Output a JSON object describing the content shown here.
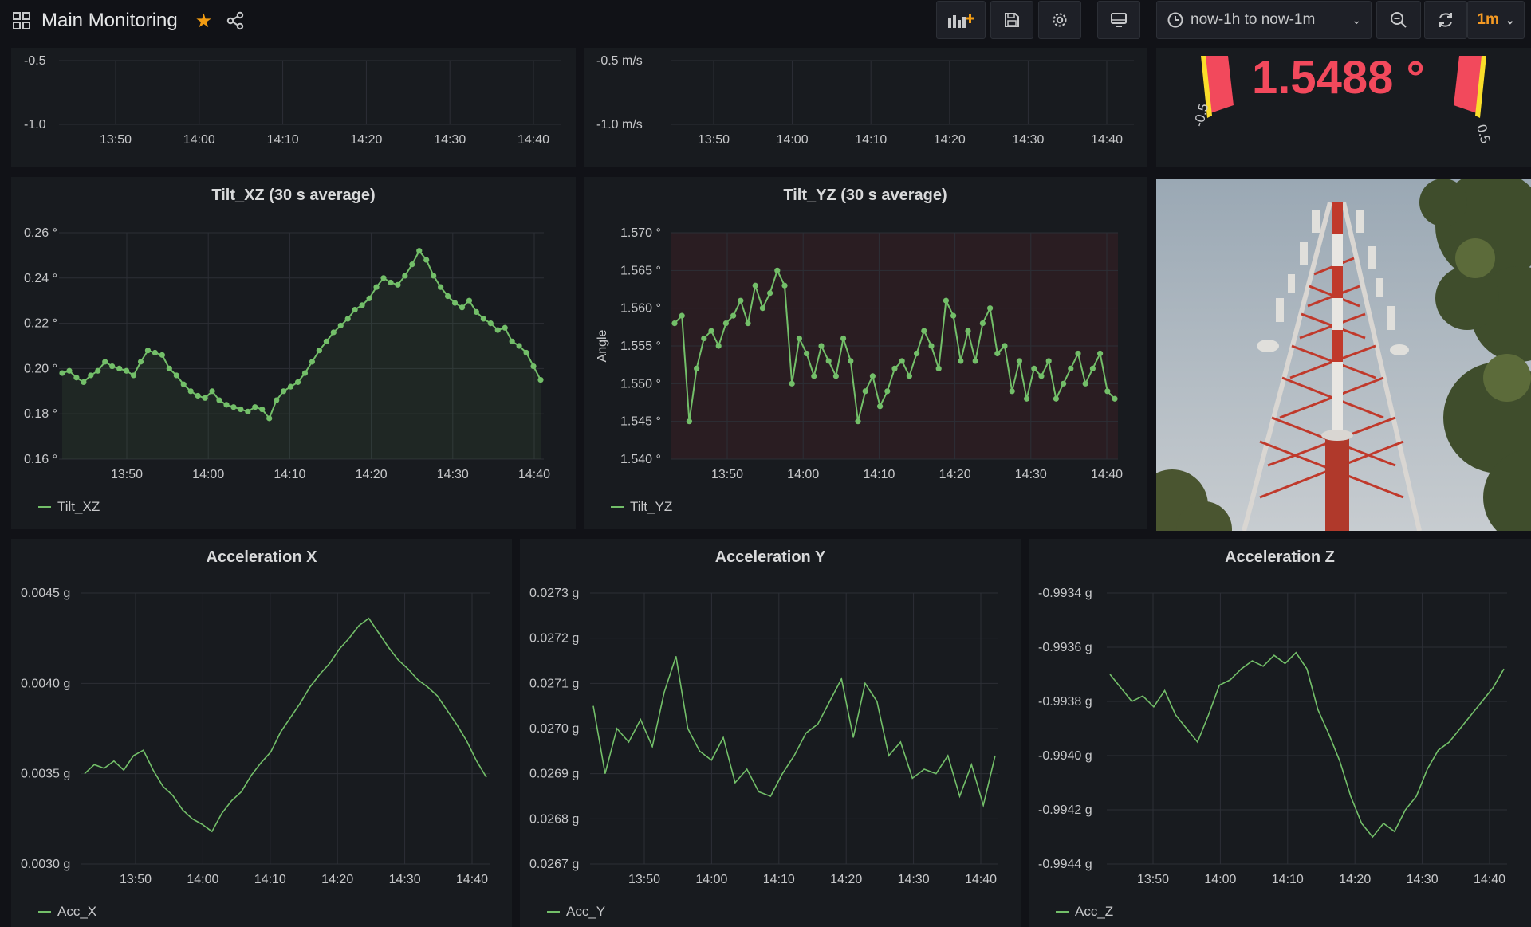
{
  "header": {
    "title": "Main Monitoring",
    "icons": [
      "dashboard-grid-icon",
      "star-icon",
      "share-icon",
      "add-panel-icon",
      "save-icon",
      "settings-icon",
      "tv-mode-icon",
      "clock-icon",
      "zoom-out-icon",
      "refresh-icon"
    ],
    "time_range": "now-1h to now-1m",
    "refresh_interval": "1m",
    "star_color": "#f39c12"
  },
  "top_left_panel": {
    "y_ticks": [
      "-0.5",
      "-1.0"
    ],
    "x_ticks": [
      "13:50",
      "14:00",
      "14:10",
      "14:20",
      "14:30",
      "14:40"
    ]
  },
  "top_mid_panel": {
    "y_ticks": [
      "-0.5 m/s",
      "-1.0 m/s"
    ],
    "x_ticks": [
      "13:50",
      "14:00",
      "14:10",
      "14:20",
      "14:30",
      "14:40"
    ]
  },
  "gauge": {
    "value": "1.5488 °",
    "min_label": "-0.5",
    "max_label": "0.5",
    "value_color": "#f2495c",
    "threshold_color": "#fade2a"
  },
  "tilt_xz": {
    "title": "Tilt_XZ (30 s average)",
    "legend": "Tilt_XZ",
    "series_color": "#73bf69",
    "y_ticks": [
      "0.26 °",
      "0.24 °",
      "0.22 °",
      "0.20 °",
      "0.18 °",
      "0.16 °"
    ],
    "x_ticks": [
      "13:50",
      "14:00",
      "14:10",
      "14:20",
      "14:30",
      "14:40"
    ],
    "chart_data": {
      "type": "line",
      "ylim": [
        0.16,
        0.26
      ],
      "values": [
        0.198,
        0.199,
        0.196,
        0.194,
        0.197,
        0.199,
        0.203,
        0.201,
        0.2,
        0.199,
        0.197,
        0.203,
        0.208,
        0.207,
        0.206,
        0.2,
        0.197,
        0.193,
        0.19,
        0.188,
        0.187,
        0.19,
        0.186,
        0.184,
        0.183,
        0.182,
        0.181,
        0.183,
        0.182,
        0.178,
        0.186,
        0.19,
        0.192,
        0.194,
        0.198,
        0.203,
        0.208,
        0.212,
        0.216,
        0.219,
        0.222,
        0.226,
        0.228,
        0.231,
        0.236,
        0.24,
        0.238,
        0.237,
        0.241,
        0.246,
        0.252,
        0.248,
        0.241,
        0.236,
        0.232,
        0.229,
        0.227,
        0.23,
        0.225,
        0.222,
        0.22,
        0.217,
        0.218,
        0.212,
        0.21,
        0.207,
        0.201,
        0.195
      ]
    }
  },
  "tilt_yz": {
    "title": "Tilt_YZ (30 s average)",
    "ylabel": "Angle",
    "legend": "Tilt_YZ",
    "series_color": "#73bf69",
    "y_ticks": [
      "1.570 °",
      "1.565 °",
      "1.560 °",
      "1.555 °",
      "1.550 °",
      "1.545 °",
      "1.540 °"
    ],
    "x_ticks": [
      "13:50",
      "14:00",
      "14:10",
      "14:20",
      "14:30",
      "14:40"
    ],
    "chart_data": {
      "type": "line",
      "ylim": [
        1.54,
        1.57
      ],
      "values": [
        1.558,
        1.559,
        1.545,
        1.552,
        1.556,
        1.557,
        1.555,
        1.558,
        1.559,
        1.561,
        1.558,
        1.563,
        1.56,
        1.562,
        1.565,
        1.563,
        1.55,
        1.556,
        1.554,
        1.551,
        1.555,
        1.553,
        1.551,
        1.556,
        1.553,
        1.545,
        1.549,
        1.551,
        1.547,
        1.549,
        1.552,
        1.553,
        1.551,
        1.554,
        1.557,
        1.555,
        1.552,
        1.561,
        1.559,
        1.553,
        1.557,
        1.553,
        1.558,
        1.56,
        1.554,
        1.555,
        1.549,
        1.553,
        1.548,
        1.552,
        1.551,
        1.553,
        1.548,
        1.55,
        1.552,
        1.554,
        1.55,
        1.552,
        1.554,
        1.549,
        1.548
      ]
    }
  },
  "acc_x": {
    "title": "Acceleration X",
    "legend": "Acc_X",
    "series_color": "#73bf69",
    "y_ticks": [
      "0.0045 g",
      "0.0040 g",
      "0.0035 g",
      "0.0030 g"
    ],
    "x_ticks": [
      "13:50",
      "14:00",
      "14:10",
      "14:20",
      "14:30",
      "14:40"
    ],
    "chart_data": {
      "type": "line",
      "ylim": [
        0.003,
        0.0045
      ],
      "values": [
        0.0035,
        0.00355,
        0.00353,
        0.00357,
        0.00352,
        0.0036,
        0.00363,
        0.00352,
        0.00343,
        0.00338,
        0.0033,
        0.00325,
        0.00322,
        0.00318,
        0.00328,
        0.00335,
        0.0034,
        0.00349,
        0.00356,
        0.00362,
        0.00373,
        0.00381,
        0.00389,
        0.00398,
        0.00405,
        0.00411,
        0.00419,
        0.00425,
        0.00432,
        0.00436,
        0.00428,
        0.0042,
        0.00413,
        0.00408,
        0.00402,
        0.00398,
        0.00393,
        0.00385,
        0.00377,
        0.00368,
        0.00357,
        0.00348
      ]
    }
  },
  "acc_y": {
    "title": "Acceleration Y",
    "legend": "Acc_Y",
    "series_color": "#73bf69",
    "y_ticks": [
      "0.0273 g",
      "0.0272 g",
      "0.0271 g",
      "0.0270 g",
      "0.0269 g",
      "0.0268 g",
      "0.0267 g"
    ],
    "x_ticks": [
      "13:50",
      "14:00",
      "14:10",
      "14:20",
      "14:30",
      "14:40"
    ],
    "chart_data": {
      "type": "line",
      "ylim": [
        0.0267,
        0.0273
      ],
      "values": [
        0.02705,
        0.0269,
        0.027,
        0.02697,
        0.02702,
        0.02696,
        0.02708,
        0.02716,
        0.027,
        0.02695,
        0.02693,
        0.02698,
        0.02688,
        0.02691,
        0.02686,
        0.02685,
        0.0269,
        0.02694,
        0.02699,
        0.02701,
        0.02706,
        0.02711,
        0.02698,
        0.0271,
        0.02706,
        0.02694,
        0.02697,
        0.02689,
        0.02691,
        0.0269,
        0.02694,
        0.02685,
        0.02692,
        0.02683,
        0.02694
      ]
    }
  },
  "acc_z": {
    "title": "Acceleration Z",
    "legend": "Acc_Z",
    "series_color": "#73bf69",
    "y_ticks": [
      "-0.9934 g",
      "-0.9936 g",
      "-0.9938 g",
      "-0.9940 g",
      "-0.9942 g",
      "-0.9944 g"
    ],
    "x_ticks": [
      "13:50",
      "14:00",
      "14:10",
      "14:20",
      "14:30",
      "14:40"
    ],
    "chart_data": {
      "type": "line",
      "ylim": [
        -0.9944,
        -0.9934
      ],
      "values": [
        -0.9937,
        -0.99375,
        -0.9938,
        -0.99378,
        -0.99382,
        -0.99376,
        -0.99385,
        -0.9939,
        -0.99395,
        -0.99385,
        -0.99374,
        -0.99372,
        -0.99368,
        -0.99365,
        -0.99367,
        -0.99363,
        -0.99366,
        -0.99362,
        -0.99368,
        -0.99383,
        -0.99392,
        -0.99402,
        -0.99415,
        -0.99425,
        -0.9943,
        -0.99425,
        -0.99428,
        -0.9942,
        -0.99415,
        -0.99405,
        -0.99398,
        -0.99395,
        -0.9939,
        -0.99385,
        -0.9938,
        -0.99375,
        -0.99368
      ]
    }
  }
}
